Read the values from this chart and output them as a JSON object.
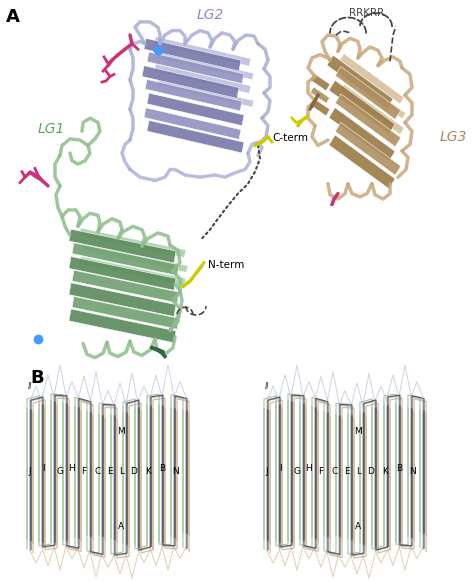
{
  "panel_a_label": "A",
  "panel_b_label": "B",
  "lg2_label": "LG2",
  "lg1_label": "LG1",
  "lg3_label": "LG3",
  "lg2_color": "#a8aed4",
  "lg2_dark": "#7878aa",
  "lg2_mid": "#9090c0",
  "lg1_color": "#8dbd8d",
  "lg1_dark": "#5a8a5a",
  "lg1_mid": "#70a070",
  "lg3_color": "#c8a87a",
  "lg3_dark": "#9a7a45",
  "lg3_mid": "#b09060",
  "lg2_label_color": "#8888cc",
  "lg1_label_color": "#5aaa5a",
  "lg3_label_color": "#aa8855",
  "hotpink_color": "#cc3377",
  "yellow_color": "#cccc00",
  "blue_dot_color": "#4499ff",
  "dark_green_color": "#336644",
  "brown_color": "#886644",
  "dashed_color": "#444444",
  "rrkrr_label": "RRKRR",
  "cterm_label": "C-term",
  "nterm_label": "N-term",
  "bg_color": "#ffffff",
  "b_green": "#8dbd8d",
  "b_blue": "#a8aed4",
  "b_tan": "#c8a87a",
  "b_dark": "#333333"
}
